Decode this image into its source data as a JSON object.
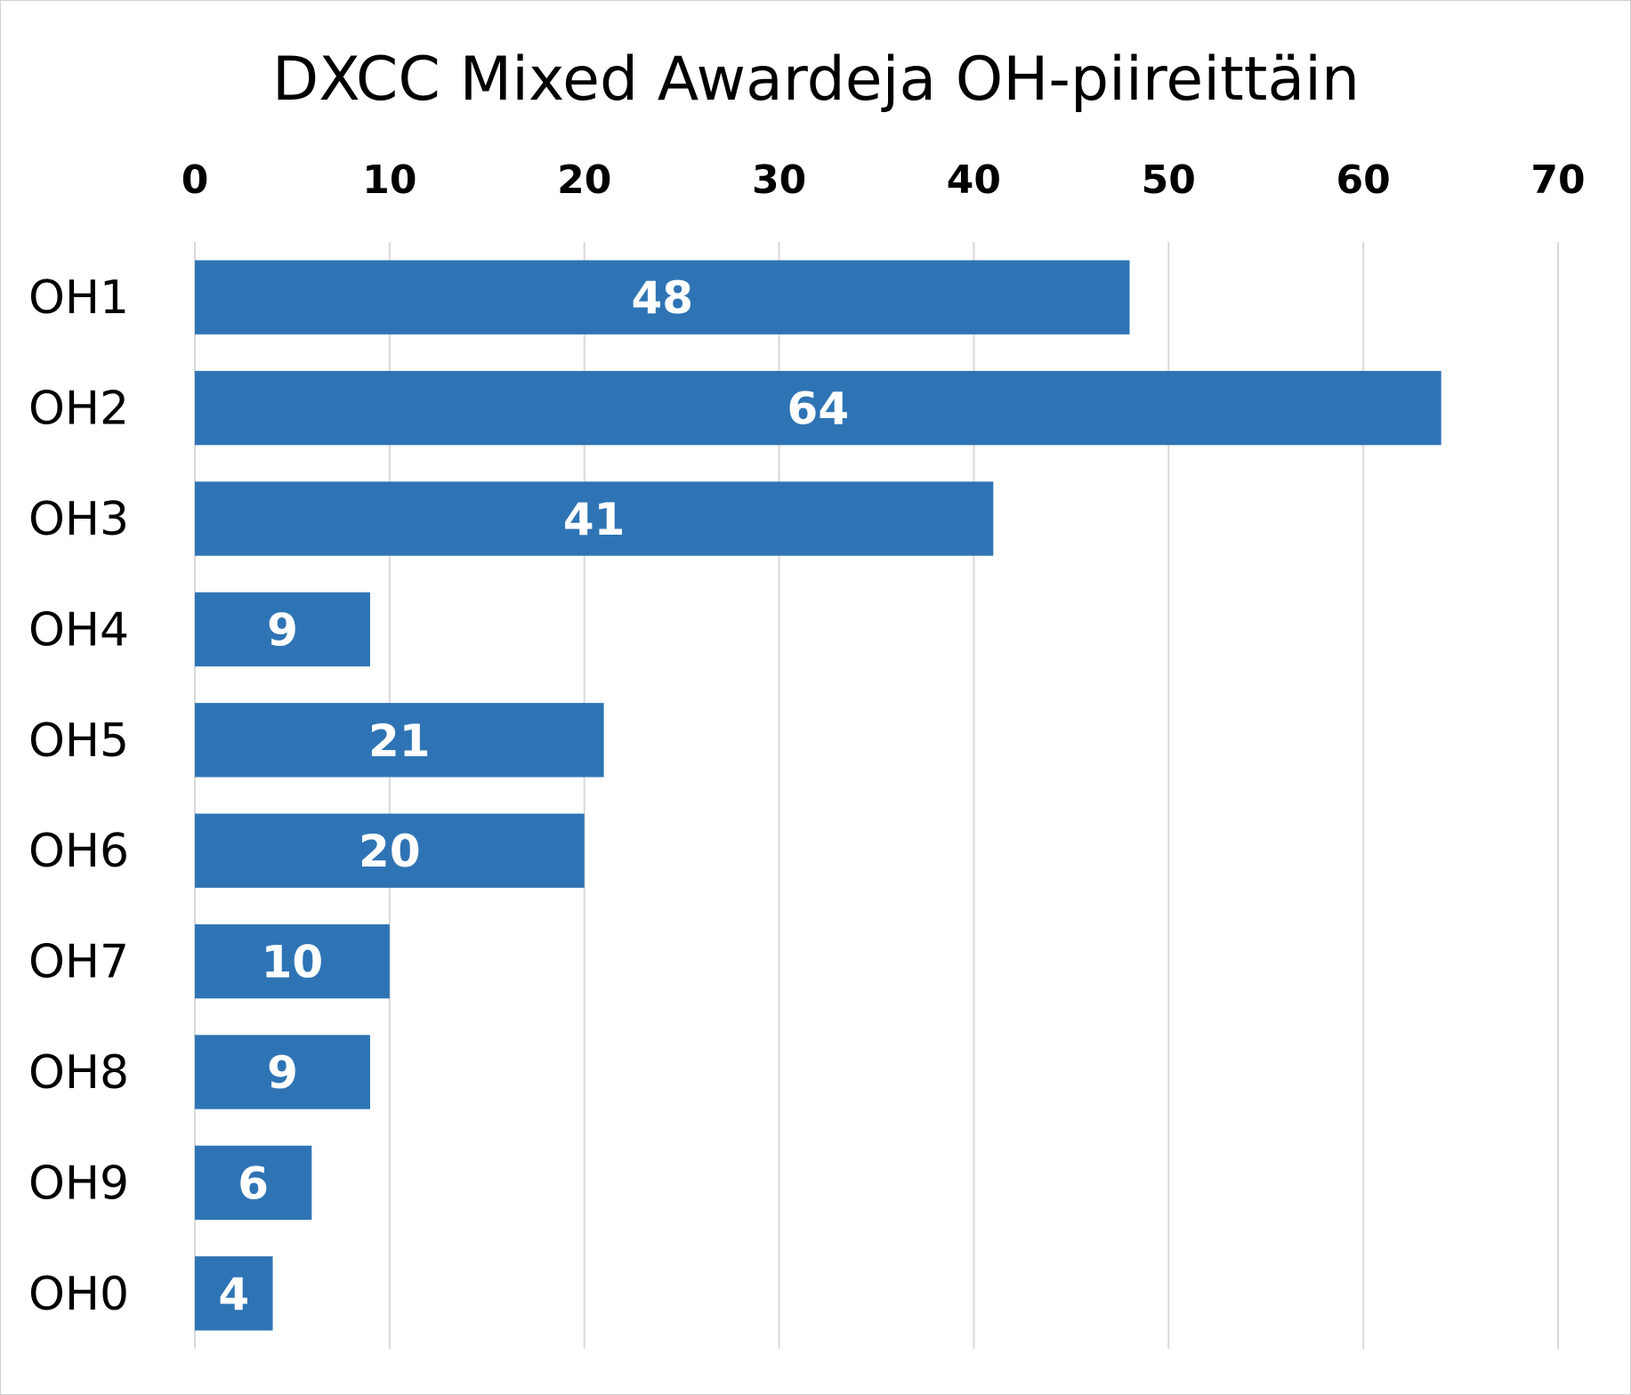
{
  "chart_data": {
    "type": "bar",
    "orientation": "horizontal",
    "title": "DXCC Mixed Awardeja OH-piireittäin",
    "categories": [
      "OH1",
      "OH2",
      "OH3",
      "OH4",
      "OH5",
      "OH6",
      "OH7",
      "OH8",
      "OH9",
      "OH0"
    ],
    "values": [
      48,
      64,
      41,
      9,
      21,
      20,
      10,
      9,
      6,
      4
    ],
    "xlim": [
      0,
      70
    ],
    "xticks": [
      0,
      10,
      20,
      30,
      40,
      50,
      60,
      70
    ],
    "xaxis_position": "top",
    "xlabel": "",
    "ylabel": "",
    "grid": true,
    "data_labels": true,
    "bar_color": "#2E74B5",
    "grid_color": "#D9D9D9"
  }
}
